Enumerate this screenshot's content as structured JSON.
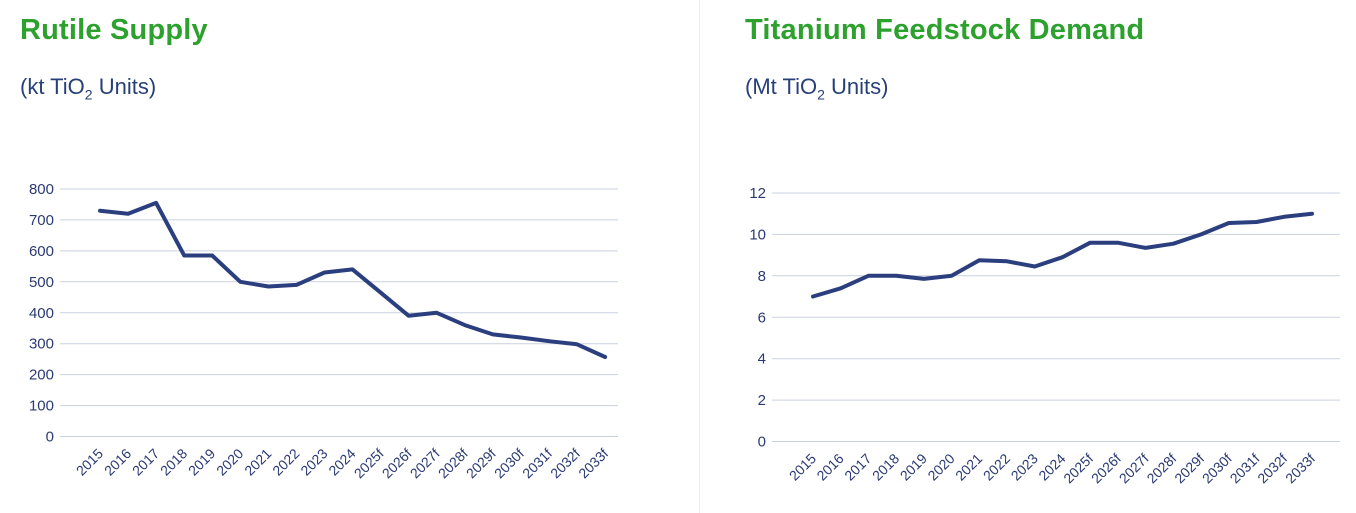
{
  "colors": {
    "title_green": "#2da12d",
    "subtitle_navy": "#27407a",
    "line_navy": "#2b3f7e",
    "axis_text_navy": "#2b3a72",
    "gridline": "#c9d1e0",
    "divider": "#eeede9",
    "background": "#ffffff"
  },
  "chart_data": [
    {
      "name": "rutile-supply",
      "type": "line",
      "title": "Rutile Supply",
      "subtitle": {
        "pre": "(kt TiO",
        "sub": "2",
        "post": " Units)"
      },
      "xlabel": "",
      "ylabel": "kt TiO2 Units",
      "ylim": [
        0,
        800
      ],
      "yticks": [
        0,
        100,
        200,
        300,
        400,
        500,
        600,
        700,
        800
      ],
      "grid": true,
      "legend": "none",
      "categories": [
        "2015",
        "2016",
        "2017",
        "2018",
        "2019",
        "2020",
        "2021",
        "2022",
        "2023",
        "2024",
        "2025f",
        "2026f",
        "2027f",
        "2028f",
        "2029f",
        "2030f",
        "2031f",
        "2032f",
        "2033f"
      ],
      "values": [
        730,
        720,
        755,
        585,
        585,
        500,
        485,
        490,
        530,
        540,
        465,
        390,
        400,
        360,
        330,
        320,
        308,
        298,
        257
      ]
    },
    {
      "name": "titanium-feedstock-demand",
      "type": "line",
      "title": "Titanium Feedstock Demand",
      "subtitle": {
        "pre": "(Mt TiO",
        "sub": "2",
        "post": " Units)"
      },
      "xlabel": "",
      "ylabel": "Mt TiO2 Units",
      "ylim": [
        0,
        12
      ],
      "yticks": [
        0,
        2,
        4,
        6,
        8,
        10,
        12
      ],
      "grid": true,
      "legend": "none",
      "categories": [
        "2015",
        "2016",
        "2017",
        "2018",
        "2019",
        "2020",
        "2021",
        "2022",
        "2023",
        "2024",
        "2025f",
        "2026f",
        "2027f",
        "2028f",
        "2029f",
        "2030f",
        "2031f",
        "2032f",
        "2033f"
      ],
      "values": [
        7.0,
        7.4,
        8.0,
        8.0,
        7.85,
        8.0,
        8.75,
        8.7,
        8.45,
        8.9,
        9.6,
        9.6,
        9.35,
        9.55,
        10.0,
        10.55,
        10.6,
        10.85,
        11.0
      ]
    }
  ]
}
